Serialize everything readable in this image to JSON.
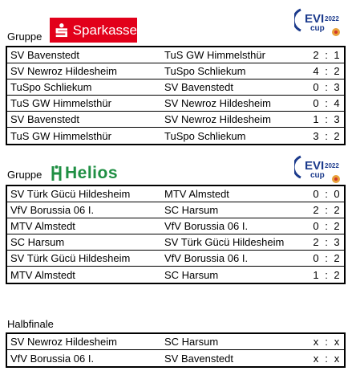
{
  "groups": [
    {
      "label": "Gruppe",
      "sponsor": "Sparkasse",
      "cup_logo": {
        "brand": "EVI",
        "year": "2022",
        "word": "cup"
      },
      "matches": [
        {
          "home": "SV Bavenstedt",
          "away": "TuS GW Himmelsthür",
          "home_score": "2",
          "away_score": "1"
        },
        {
          "home": "SV Newroz Hildesheim",
          "away": "TuSpo Schliekum",
          "home_score": "4",
          "away_score": "2"
        },
        {
          "home": "TuSpo Schliekum",
          "away": "SV Bavenstedt",
          "home_score": "0",
          "away_score": "3"
        },
        {
          "home": "TuS GW Himmelsthür",
          "away": "SV Newroz Hildesheim",
          "home_score": "0",
          "away_score": "4"
        },
        {
          "home": "SV Bavenstedt",
          "away": "SV Newroz Hildesheim",
          "home_score": "1",
          "away_score": "3"
        },
        {
          "home": "TuS GW Himmelsthür",
          "away": "TuSpo Schliekum",
          "home_score": "3",
          "away_score": "2"
        }
      ]
    },
    {
      "label": "Gruppe",
      "sponsor": "Helios",
      "cup_logo": {
        "brand": "EVI",
        "year": "2022",
        "word": "cup"
      },
      "matches": [
        {
          "home": "SV Türk Gücü Hildesheim",
          "away": "MTV Almstedt",
          "home_score": "0",
          "away_score": "0"
        },
        {
          "home": "VfV Borussia 06 I.",
          "away": "SC Harsum",
          "home_score": "2",
          "away_score": "2"
        },
        {
          "home": "MTV Almstedt",
          "away": "VfV Borussia 06 I.",
          "home_score": "0",
          "away_score": "2"
        },
        {
          "home": "SC Harsum",
          "away": "SV Türk Gücü Hildesheim",
          "home_score": "2",
          "away_score": "3"
        },
        {
          "home": "SV Türk Gücü Hildesheim",
          "away": "VfV Borussia 06 I.",
          "home_score": "0",
          "away_score": "2"
        },
        {
          "home": "MTV Almstedt",
          "away": "SC Harsum",
          "home_score": "1",
          "away_score": "2"
        }
      ]
    }
  ],
  "semifinal": {
    "label": "Halbfinale",
    "matches": [
      {
        "home": "SV Newroz Hildesheim",
        "away": "SC Harsum",
        "home_score": "x",
        "away_score": "x"
      },
      {
        "home": "VfV Borussia 06 I.",
        "away": "SV Bavenstedt",
        "home_score": "x",
        "away_score": "x"
      }
    ]
  },
  "score_separator": ":",
  "colors": {
    "sparkasse_red": "#e2001a",
    "helios_green": "#1f8f43",
    "evi_blue": "#1b3a8c"
  }
}
